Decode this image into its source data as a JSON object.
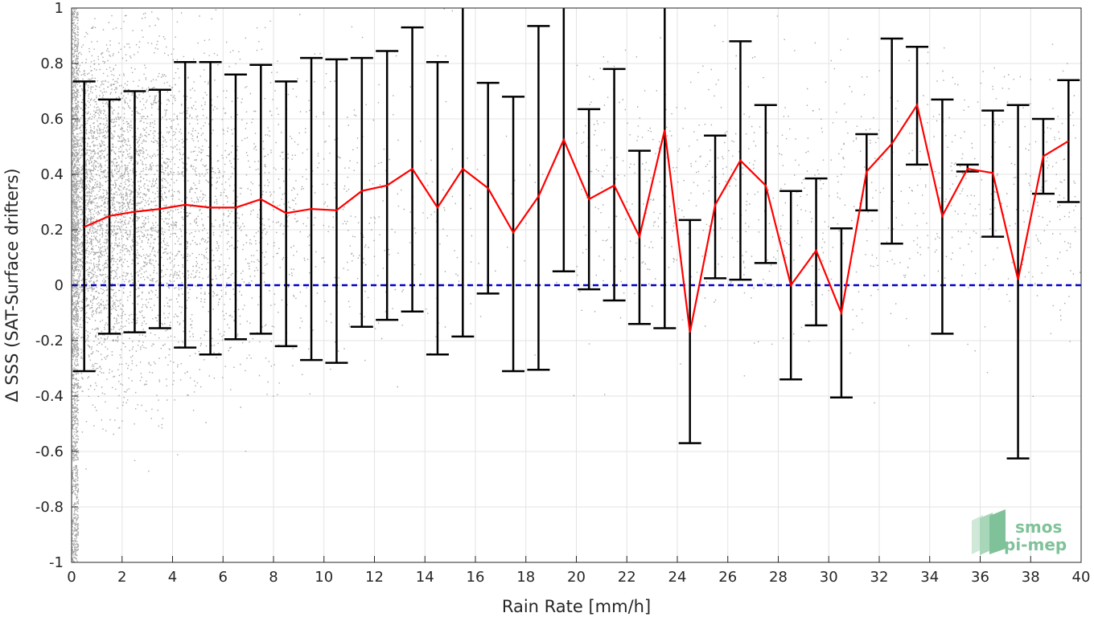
{
  "chart_data": {
    "type": "scatter",
    "title": "",
    "xlabel": "Rain Rate [mm/h]",
    "ylabel": "Δ SSS (SAT-Surface drifters)",
    "xlim": [
      0,
      40
    ],
    "ylim": [
      -1,
      1
    ],
    "xticks": [
      0,
      2,
      4,
      6,
      8,
      10,
      12,
      14,
      16,
      18,
      20,
      22,
      24,
      26,
      28,
      30,
      32,
      34,
      36,
      38,
      40
    ],
    "yticks": [
      -1,
      -0.8,
      -0.6,
      -0.4,
      -0.2,
      0,
      0.2,
      0.4,
      0.6,
      0.8,
      1
    ],
    "ytick_labels": [
      "-1",
      "-0.8",
      "-0.6",
      "-0.4",
      "-0.2",
      "0",
      "0.2",
      "0.4",
      "0.6",
      "0.8",
      "1"
    ],
    "grid": true,
    "series": [
      {
        "kind": "line-errorbar",
        "color": "#ff0000",
        "errorbar_color": "#000000",
        "x": [
          0.5,
          1.5,
          2.5,
          3.5,
          4.5,
          5.5,
          6.5,
          7.5,
          8.5,
          9.5,
          10.5,
          11.5,
          12.5,
          13.5,
          14.5,
          15.5,
          16.5,
          17.5,
          18.5,
          19.5,
          20.5,
          21.5,
          22.5,
          23.5,
          24.5,
          25.5,
          26.5,
          27.5,
          28.5,
          29.5,
          30.5,
          31.5,
          32.5,
          33.5,
          34.5,
          35.5,
          36.5,
          37.5,
          38.5,
          39.5
        ],
        "y": [
          0.21,
          0.25,
          0.265,
          0.275,
          0.29,
          0.28,
          0.28,
          0.31,
          0.26,
          0.275,
          0.27,
          0.34,
          0.36,
          0.42,
          0.28,
          0.42,
          0.35,
          0.19,
          0.32,
          0.525,
          0.31,
          0.36,
          0.175,
          0.56,
          -0.17,
          0.29,
          0.45,
          0.36,
          0.0,
          0.125,
          -0.1,
          0.41,
          0.51,
          0.65,
          0.25,
          0.42,
          0.405,
          0.02,
          0.465,
          0.52
        ],
        "lower": [
          -0.31,
          -0.175,
          -0.17,
          -0.155,
          -0.225,
          -0.25,
          -0.195,
          -0.175,
          -0.22,
          -0.27,
          -0.28,
          -0.15,
          -0.125,
          -0.095,
          -0.25,
          -0.185,
          -0.03,
          -0.31,
          -0.305,
          0.05,
          -0.015,
          -0.055,
          -0.14,
          -0.155,
          -0.57,
          0.025,
          0.02,
          0.08,
          -0.34,
          -0.145,
          -0.405,
          0.27,
          0.15,
          0.435,
          -0.175,
          0.41,
          0.175,
          -0.625,
          0.33,
          0.3
        ],
        "upper": [
          0.735,
          0.67,
          0.7,
          0.705,
          0.805,
          0.805,
          0.76,
          0.795,
          0.735,
          0.82,
          0.815,
          0.82,
          0.845,
          0.93,
          0.805,
          1.0,
          0.73,
          0.68,
          0.935,
          1.0,
          0.635,
          0.78,
          0.485,
          1.0,
          0.235,
          0.54,
          0.88,
          0.65,
          0.34,
          0.385,
          0.205,
          0.545,
          0.89,
          0.86,
          0.67,
          0.435,
          0.63,
          0.65,
          0.6,
          0.74
        ]
      },
      {
        "kind": "reference-line",
        "y": 0,
        "color": "#0000cc",
        "style": "dashed"
      },
      {
        "kind": "scatter-cloud",
        "color": "#888888",
        "description_density": "dense near 0 mm/h, sparse beyond 20 mm/h"
      }
    ]
  },
  "logo": {
    "line1": "smos",
    "line2": "pi-mep",
    "color": "#7fc29a"
  }
}
